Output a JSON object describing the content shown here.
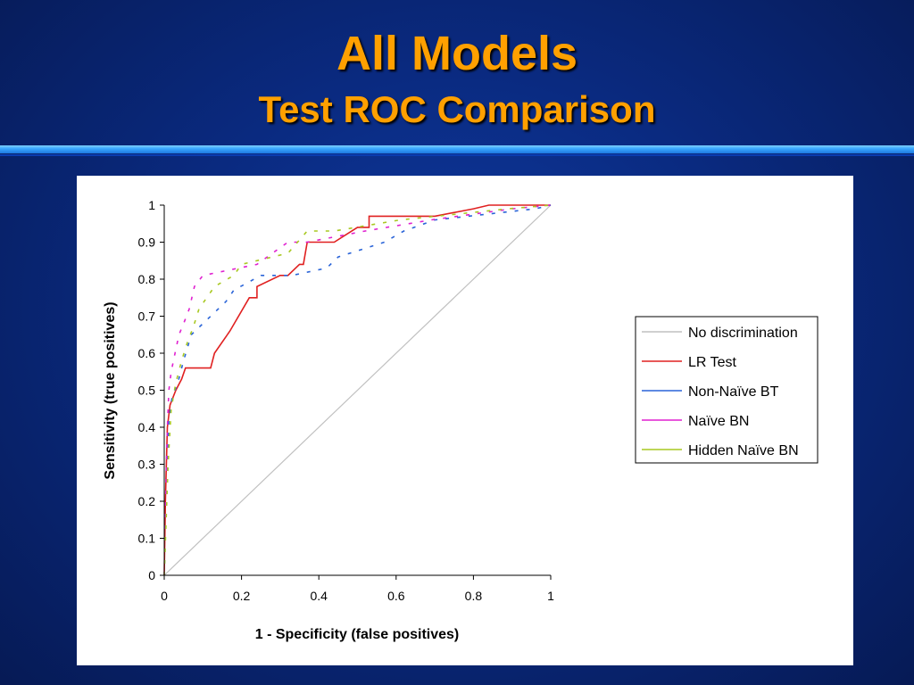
{
  "slide": {
    "title": "All Models",
    "subtitle": "Test ROC Comparison"
  },
  "chart_data": {
    "type": "line",
    "xlabel": "1 - Specificity (false positives)",
    "ylabel": "Sensitivity (true positives)",
    "xlim": [
      0,
      1
    ],
    "ylim": [
      0,
      1
    ],
    "xticks": [
      0,
      0.2,
      0.4,
      0.6,
      0.8,
      1
    ],
    "yticks": [
      0,
      0.1,
      0.2,
      0.3,
      0.4,
      0.5,
      0.6,
      0.7,
      0.8,
      0.9,
      1
    ],
    "grid": false,
    "legend_position": "right",
    "series": [
      {
        "name": "No discrimination",
        "color": "#c0c0c0",
        "style": "line",
        "points": [
          [
            0,
            0
          ],
          [
            1,
            1
          ]
        ]
      },
      {
        "name": "LR Test",
        "color": "#e02020",
        "style": "line",
        "points": [
          [
            0,
            0
          ],
          [
            0.003,
            0.2
          ],
          [
            0.008,
            0.4
          ],
          [
            0.015,
            0.46
          ],
          [
            0.03,
            0.5
          ],
          [
            0.045,
            0.53
          ],
          [
            0.055,
            0.56
          ],
          [
            0.08,
            0.56
          ],
          [
            0.12,
            0.56
          ],
          [
            0.13,
            0.6
          ],
          [
            0.17,
            0.66
          ],
          [
            0.22,
            0.75
          ],
          [
            0.24,
            0.75
          ],
          [
            0.24,
            0.78
          ],
          [
            0.3,
            0.81
          ],
          [
            0.32,
            0.81
          ],
          [
            0.35,
            0.84
          ],
          [
            0.36,
            0.84
          ],
          [
            0.37,
            0.9
          ],
          [
            0.42,
            0.9
          ],
          [
            0.44,
            0.9
          ],
          [
            0.5,
            0.94
          ],
          [
            0.53,
            0.94
          ],
          [
            0.53,
            0.97
          ],
          [
            0.64,
            0.97
          ],
          [
            0.7,
            0.97
          ],
          [
            0.8,
            0.99
          ],
          [
            0.84,
            1
          ],
          [
            0.88,
            1
          ],
          [
            1,
            1
          ]
        ]
      },
      {
        "name": "Non-Naïve BT",
        "color": "#2a64d8",
        "style": "dash",
        "points": [
          [
            0,
            0
          ],
          [
            0.003,
            0.14
          ],
          [
            0.007,
            0.3
          ],
          [
            0.012,
            0.42
          ],
          [
            0.02,
            0.48
          ],
          [
            0.035,
            0.52
          ],
          [
            0.05,
            0.58
          ],
          [
            0.07,
            0.65
          ],
          [
            0.1,
            0.68
          ],
          [
            0.13,
            0.71
          ],
          [
            0.16,
            0.74
          ],
          [
            0.18,
            0.77
          ],
          [
            0.25,
            0.81
          ],
          [
            0.33,
            0.81
          ],
          [
            0.42,
            0.83
          ],
          [
            0.45,
            0.86
          ],
          [
            0.57,
            0.9
          ],
          [
            0.62,
            0.93
          ],
          [
            0.7,
            0.96
          ],
          [
            0.96,
            0.99
          ],
          [
            1,
            1
          ]
        ]
      },
      {
        "name": "Naïve BN",
        "color": "#e020d0",
        "style": "dash",
        "points": [
          [
            0,
            0
          ],
          [
            0.003,
            0.17
          ],
          [
            0.008,
            0.4
          ],
          [
            0.012,
            0.5
          ],
          [
            0.018,
            0.55
          ],
          [
            0.028,
            0.6
          ],
          [
            0.038,
            0.65
          ],
          [
            0.05,
            0.68
          ],
          [
            0.065,
            0.72
          ],
          [
            0.078,
            0.78
          ],
          [
            0.1,
            0.81
          ],
          [
            0.24,
            0.84
          ],
          [
            0.28,
            0.87
          ],
          [
            0.32,
            0.9
          ],
          [
            0.37,
            0.9
          ],
          [
            0.52,
            0.93
          ],
          [
            0.69,
            0.96
          ],
          [
            0.9,
            0.99
          ],
          [
            1,
            1
          ]
        ]
      },
      {
        "name": "Hidden Naïve BN",
        "color": "#a8c820",
        "style": "dash",
        "points": [
          [
            0,
            0
          ],
          [
            0.004,
            0.12
          ],
          [
            0.01,
            0.3
          ],
          [
            0.018,
            0.45
          ],
          [
            0.03,
            0.52
          ],
          [
            0.045,
            0.58
          ],
          [
            0.06,
            0.63
          ],
          [
            0.075,
            0.67
          ],
          [
            0.09,
            0.72
          ],
          [
            0.13,
            0.78
          ],
          [
            0.18,
            0.81
          ],
          [
            0.2,
            0.84
          ],
          [
            0.32,
            0.87
          ],
          [
            0.37,
            0.93
          ],
          [
            0.44,
            0.93
          ],
          [
            0.61,
            0.96
          ],
          [
            0.89,
            0.99
          ],
          [
            1,
            1
          ]
        ]
      }
    ]
  }
}
